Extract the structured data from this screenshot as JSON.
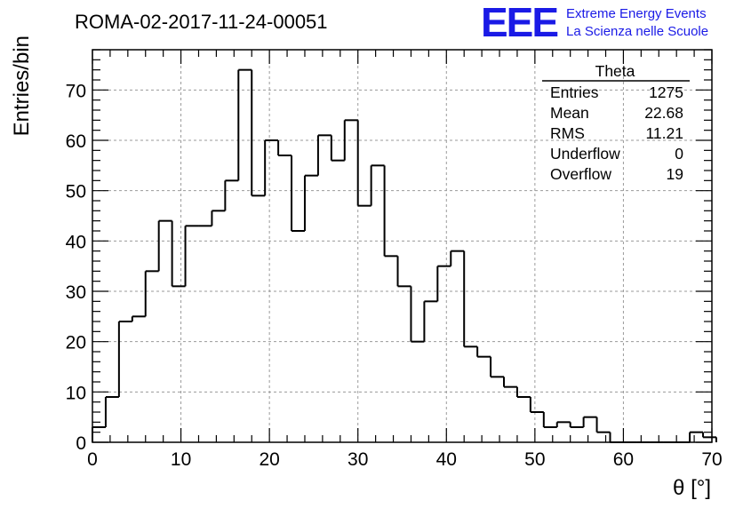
{
  "chart_data": {
    "type": "bar",
    "title": "ROMA-02-2017-11-24-00051",
    "xlabel": "θ [°]",
    "ylabel": "Entries/bin",
    "xlim": [
      0,
      70
    ],
    "ylim": [
      0,
      78
    ],
    "grid": true,
    "bin_width": 1.5,
    "values": [
      3,
      9,
      24,
      25,
      34,
      44,
      31,
      43,
      43,
      46,
      52,
      74,
      49,
      60,
      57,
      42,
      53,
      61,
      56,
      64,
      47,
      55,
      37,
      31,
      20,
      28,
      35,
      38,
      19,
      17,
      13,
      11,
      9,
      6,
      3,
      4,
      3,
      5,
      2,
      0,
      0,
      0,
      0,
      0,
      0,
      2,
      1
    ],
    "x_ticks": [
      "0",
      "10",
      "20",
      "30",
      "40",
      "50",
      "60",
      "70"
    ],
    "y_ticks": [
      "0",
      "10",
      "20",
      "30",
      "40",
      "50",
      "60",
      "70"
    ],
    "stats": {
      "name": "Theta",
      "rows": [
        {
          "label": "Entries",
          "value": "1275"
        },
        {
          "label": "Mean",
          "value": "22.68"
        },
        {
          "label": "RMS",
          "value": "11.21"
        },
        {
          "label": "Underflow",
          "value": "0"
        },
        {
          "label": "Overflow",
          "value": "19"
        }
      ]
    }
  },
  "logo": {
    "letters": "EEE",
    "line1": "Extreme Energy Events",
    "line2": "La Scienza nelle Scuole"
  },
  "colors": {
    "histogram": "#000000",
    "grid": "#9a9a9a",
    "logo": "#1a1ae6"
  }
}
